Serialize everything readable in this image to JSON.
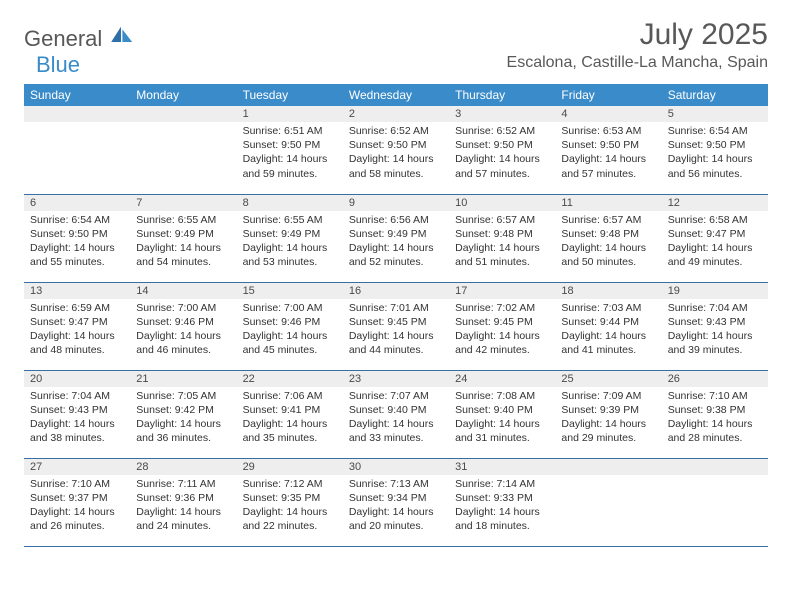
{
  "logo": {
    "general": "General",
    "blue": "Blue"
  },
  "header": {
    "title": "July 2025",
    "location": "Escalona, Castille-La Mancha, Spain"
  },
  "colors": {
    "header_bg": "#3a8bc9",
    "header_text": "#ffffff",
    "daynum_bg": "#eeeeee",
    "border": "#3a6ea8",
    "title": "#58585a",
    "body_text": "#333333"
  },
  "weekdays": [
    "Sunday",
    "Monday",
    "Tuesday",
    "Wednesday",
    "Thursday",
    "Friday",
    "Saturday"
  ],
  "weeks": [
    [
      null,
      null,
      {
        "d": "1",
        "sr": "6:51 AM",
        "ss": "9:50 PM",
        "dl": "14 hours and 59 minutes."
      },
      {
        "d": "2",
        "sr": "6:52 AM",
        "ss": "9:50 PM",
        "dl": "14 hours and 58 minutes."
      },
      {
        "d": "3",
        "sr": "6:52 AM",
        "ss": "9:50 PM",
        "dl": "14 hours and 57 minutes."
      },
      {
        "d": "4",
        "sr": "6:53 AM",
        "ss": "9:50 PM",
        "dl": "14 hours and 57 minutes."
      },
      {
        "d": "5",
        "sr": "6:54 AM",
        "ss": "9:50 PM",
        "dl": "14 hours and 56 minutes."
      }
    ],
    [
      {
        "d": "6",
        "sr": "6:54 AM",
        "ss": "9:50 PM",
        "dl": "14 hours and 55 minutes."
      },
      {
        "d": "7",
        "sr": "6:55 AM",
        "ss": "9:49 PM",
        "dl": "14 hours and 54 minutes."
      },
      {
        "d": "8",
        "sr": "6:55 AM",
        "ss": "9:49 PM",
        "dl": "14 hours and 53 minutes."
      },
      {
        "d": "9",
        "sr": "6:56 AM",
        "ss": "9:49 PM",
        "dl": "14 hours and 52 minutes."
      },
      {
        "d": "10",
        "sr": "6:57 AM",
        "ss": "9:48 PM",
        "dl": "14 hours and 51 minutes."
      },
      {
        "d": "11",
        "sr": "6:57 AM",
        "ss": "9:48 PM",
        "dl": "14 hours and 50 minutes."
      },
      {
        "d": "12",
        "sr": "6:58 AM",
        "ss": "9:47 PM",
        "dl": "14 hours and 49 minutes."
      }
    ],
    [
      {
        "d": "13",
        "sr": "6:59 AM",
        "ss": "9:47 PM",
        "dl": "14 hours and 48 minutes."
      },
      {
        "d": "14",
        "sr": "7:00 AM",
        "ss": "9:46 PM",
        "dl": "14 hours and 46 minutes."
      },
      {
        "d": "15",
        "sr": "7:00 AM",
        "ss": "9:46 PM",
        "dl": "14 hours and 45 minutes."
      },
      {
        "d": "16",
        "sr": "7:01 AM",
        "ss": "9:45 PM",
        "dl": "14 hours and 44 minutes."
      },
      {
        "d": "17",
        "sr": "7:02 AM",
        "ss": "9:45 PM",
        "dl": "14 hours and 42 minutes."
      },
      {
        "d": "18",
        "sr": "7:03 AM",
        "ss": "9:44 PM",
        "dl": "14 hours and 41 minutes."
      },
      {
        "d": "19",
        "sr": "7:04 AM",
        "ss": "9:43 PM",
        "dl": "14 hours and 39 minutes."
      }
    ],
    [
      {
        "d": "20",
        "sr": "7:04 AM",
        "ss": "9:43 PM",
        "dl": "14 hours and 38 minutes."
      },
      {
        "d": "21",
        "sr": "7:05 AM",
        "ss": "9:42 PM",
        "dl": "14 hours and 36 minutes."
      },
      {
        "d": "22",
        "sr": "7:06 AM",
        "ss": "9:41 PM",
        "dl": "14 hours and 35 minutes."
      },
      {
        "d": "23",
        "sr": "7:07 AM",
        "ss": "9:40 PM",
        "dl": "14 hours and 33 minutes."
      },
      {
        "d": "24",
        "sr": "7:08 AM",
        "ss": "9:40 PM",
        "dl": "14 hours and 31 minutes."
      },
      {
        "d": "25",
        "sr": "7:09 AM",
        "ss": "9:39 PM",
        "dl": "14 hours and 29 minutes."
      },
      {
        "d": "26",
        "sr": "7:10 AM",
        "ss": "9:38 PM",
        "dl": "14 hours and 28 minutes."
      }
    ],
    [
      {
        "d": "27",
        "sr": "7:10 AM",
        "ss": "9:37 PM",
        "dl": "14 hours and 26 minutes."
      },
      {
        "d": "28",
        "sr": "7:11 AM",
        "ss": "9:36 PM",
        "dl": "14 hours and 24 minutes."
      },
      {
        "d": "29",
        "sr": "7:12 AM",
        "ss": "9:35 PM",
        "dl": "14 hours and 22 minutes."
      },
      {
        "d": "30",
        "sr": "7:13 AM",
        "ss": "9:34 PM",
        "dl": "14 hours and 20 minutes."
      },
      {
        "d": "31",
        "sr": "7:14 AM",
        "ss": "9:33 PM",
        "dl": "14 hours and 18 minutes."
      },
      null,
      null
    ]
  ],
  "labels": {
    "sunrise": "Sunrise:",
    "sunset": "Sunset:",
    "daylight": "Daylight:"
  }
}
